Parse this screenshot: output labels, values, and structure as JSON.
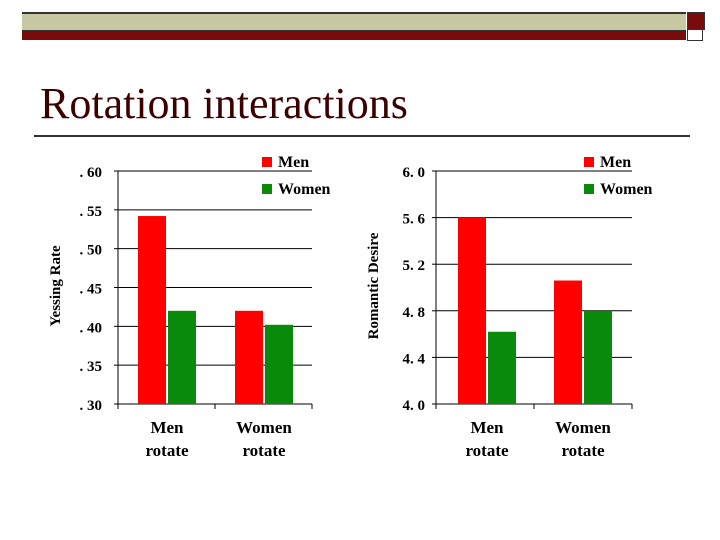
{
  "slide": {
    "title": "Rotation interactions"
  },
  "colors": {
    "men": "#ff0000",
    "women": "#0a8a0a",
    "title": "#3d0000",
    "header_band_light": "#c8c8a2",
    "header_band_dark": "#7a0b0b"
  },
  "chart_data": [
    {
      "type": "bar",
      "ylabel": "Yessing Rate",
      "xlabel": "",
      "categories": [
        "Men rotate",
        "Women rotate"
      ],
      "category_lines": [
        [
          "Men",
          "rotate"
        ],
        [
          "Women",
          "rotate"
        ]
      ],
      "ylim": [
        0.3,
        0.6
      ],
      "yticks": [
        0.3,
        0.35,
        0.4,
        0.45,
        0.5,
        0.55,
        0.6
      ],
      "ytick_labels": [
        ". 30",
        ". 35",
        ". 40",
        ". 45",
        ". 50",
        ". 55",
        ". 60"
      ],
      "series": [
        {
          "name": "Men",
          "values": [
            0.542,
            0.42
          ]
        },
        {
          "name": "Women",
          "values": [
            0.42,
            0.402
          ]
        }
      ],
      "grid": true,
      "legend": "top-right"
    },
    {
      "type": "bar",
      "ylabel": "Romantic Desire",
      "xlabel": "",
      "categories": [
        "Men rotate",
        "Women rotate"
      ],
      "category_lines": [
        [
          "Men",
          "rotate"
        ],
        [
          "Women",
          "rotate"
        ]
      ],
      "ylim": [
        4.0,
        6.0
      ],
      "yticks": [
        4.0,
        4.4,
        4.8,
        5.2,
        5.6,
        6.0
      ],
      "ytick_labels": [
        "4. 0",
        "4. 4",
        "4. 8",
        "5. 2",
        "5. 6",
        "6. 0"
      ],
      "series": [
        {
          "name": "Men",
          "values": [
            5.6,
            5.06
          ]
        },
        {
          "name": "Women",
          "values": [
            4.62,
            4.8
          ]
        }
      ],
      "grid": true,
      "legend": "top-right"
    }
  ]
}
